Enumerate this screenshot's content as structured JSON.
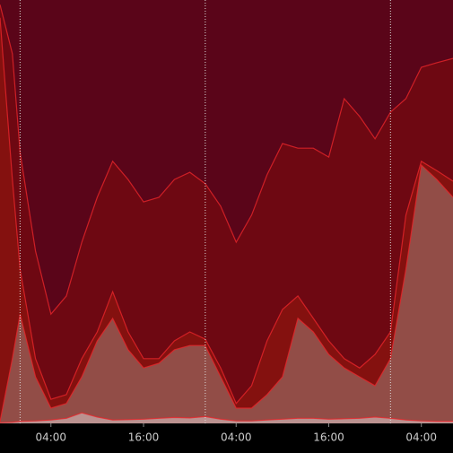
{
  "chart_data": {
    "type": "area",
    "x": [
      -2.6,
      -1,
      0,
      2,
      4,
      6,
      8,
      10,
      12,
      14,
      16,
      18,
      20,
      22,
      24,
      26,
      28,
      30,
      32,
      34,
      36,
      38,
      40,
      42,
      44,
      46,
      48,
      50,
      52,
      54,
      56.1
    ],
    "series": [
      {
        "color": "#6e0812",
        "values": [
          98.9,
          87.3,
          64.0,
          40.7,
          25.8,
          30.1,
          42.8,
          53.4,
          61.9,
          57.6,
          52.3,
          53.4,
          57.6,
          59.3,
          56.6,
          51.3,
          42.8,
          49.2,
          58.7,
          66.1,
          65.0,
          65.0,
          62.9,
          76.7,
          72.5,
          67.2,
          73.5,
          76.7,
          84.1,
          85.2,
          86.2
        ]
      },
      {
        "color": "#84110f",
        "values": [
          95.8,
          57.6,
          36.4,
          15.3,
          5.7,
          6.8,
          15.3,
          21.6,
          31.1,
          21.6,
          15.3,
          15.3,
          19.5,
          21.6,
          19.9,
          13.1,
          4.7,
          8.9,
          19.5,
          26.9,
          30.1,
          24.8,
          19.5,
          15.3,
          13.1,
          16.3,
          21.6,
          49.2,
          61.9,
          59.7,
          57.2
        ]
      },
      {
        "color": "#93544e",
        "values": [
          0.4,
          15.3,
          25.8,
          11.0,
          3.6,
          4.7,
          11.0,
          19.5,
          24.8,
          17.4,
          13.1,
          14.2,
          17.4,
          18.4,
          18.4,
          11.0,
          3.6,
          3.6,
          6.8,
          11.0,
          24.8,
          21.6,
          16.3,
          13.1,
          11.0,
          8.9,
          15.3,
          36.4,
          61.0,
          57.6,
          53.4
        ]
      },
      {
        "color": "#c09a98",
        "values": [
          0.2,
          0.3,
          0.5,
          0.6,
          0.8,
          1.2,
          2.5,
          1.5,
          0.8,
          0.9,
          1.0,
          1.2,
          1.4,
          1.3,
          1.6,
          1.0,
          0.6,
          0.6,
          0.8,
          1.0,
          1.2,
          1.2,
          1.0,
          1.1,
          1.2,
          1.5,
          1.2,
          0.8,
          0.6,
          0.5,
          0.5
        ]
      }
    ],
    "xlim": [
      -2.6,
      56.1
    ],
    "ylim": [
      0,
      100
    ],
    "xticks": [
      {
        "value": 4,
        "label": "04:00"
      },
      {
        "value": 16,
        "label": "16:00"
      },
      {
        "value": 28,
        "label": "04:00"
      },
      {
        "value": 40,
        "label": "16:00"
      },
      {
        "value": 52,
        "label": "04:00"
      }
    ],
    "vlines": [
      0,
      24,
      48
    ],
    "background": "#5a0519",
    "line_color": "#e8262a"
  }
}
